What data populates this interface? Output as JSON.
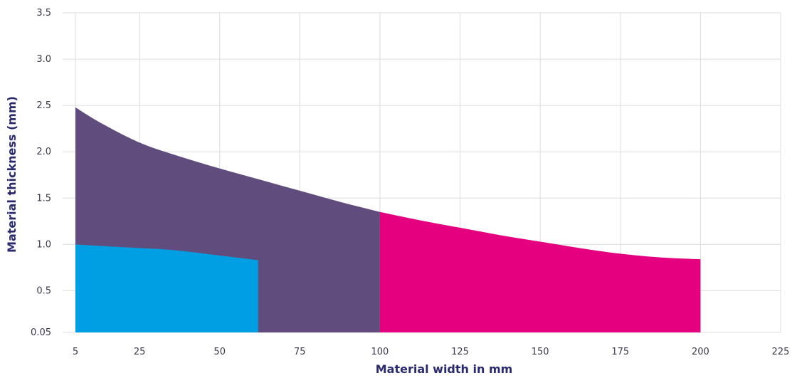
{
  "chart_data": {
    "type": "area",
    "title": "",
    "xlabel": "Material width in mm",
    "ylabel": "Material thickness (mm)",
    "x_ticks": [
      5,
      25,
      50,
      75,
      100,
      125,
      150,
      175,
      200,
      225
    ],
    "x_tick_labels": [
      "5",
      "25",
      "50",
      "75",
      "100",
      "125",
      "150",
      "175",
      "200",
      "225"
    ],
    "y_ticks": [
      0.05,
      0.5,
      1.0,
      1.5,
      2.0,
      2.5,
      3.0,
      3.5
    ],
    "y_tick_labels": [
      "0.05",
      "0.5",
      "1.0",
      "1.5",
      "2.0",
      "2.5",
      "3.0",
      "3.5"
    ],
    "xlim": [
      5,
      225
    ],
    "ylim": [
      0.05,
      3.5
    ],
    "grid": true,
    "legend": "none",
    "series": [
      {
        "color": "#614d7d",
        "x": [
          5,
          12.5,
          25,
          37.5,
          50,
          62.5,
          75,
          87.5,
          100
        ],
        "y": [
          2.48,
          2.32,
          2.1,
          1.95,
          1.82,
          1.7,
          1.58,
          1.46,
          1.35
        ]
      },
      {
        "color": "#e4007f",
        "x": [
          100,
          112.5,
          125,
          137.5,
          150,
          162.5,
          175,
          187.5,
          200
        ],
        "y": [
          1.35,
          1.26,
          1.18,
          1.1,
          1.03,
          0.96,
          0.9,
          0.86,
          0.84
        ]
      },
      {
        "color": "#009fe3",
        "x": [
          5,
          20,
          35,
          50,
          62
        ],
        "y": [
          1.0,
          0.97,
          0.94,
          0.88,
          0.83
        ]
      }
    ]
  }
}
